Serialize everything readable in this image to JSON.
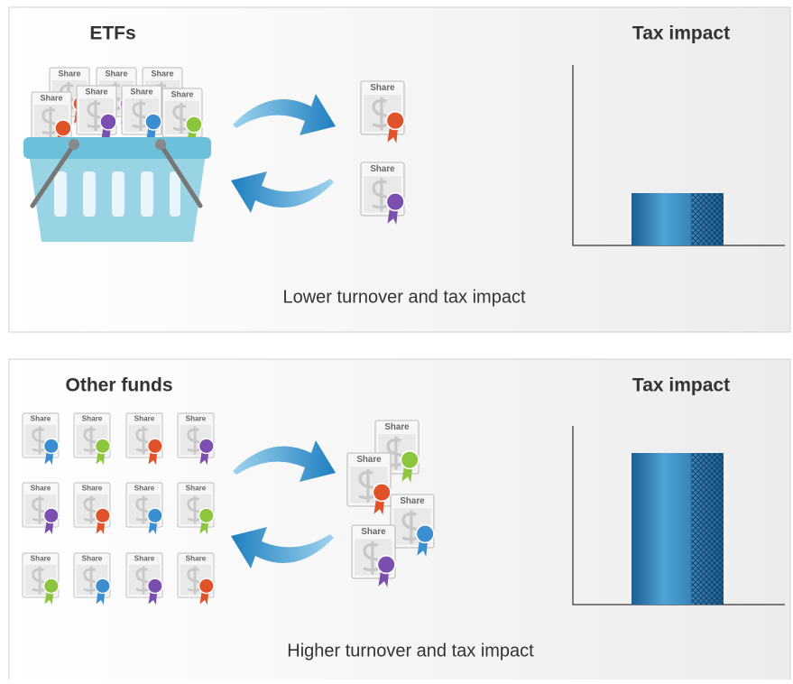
{
  "panels": [
    {
      "title": "ETFs",
      "chart_title": "Tax impact",
      "caption": "Lower turnover and tax impact",
      "basket_shares": [
        {
          "label": "Share",
          "ribbon": "#e0522a"
        },
        {
          "label": "Share",
          "ribbon": "#7b4fb0"
        },
        {
          "label": "Share",
          "ribbon": "#3b8fd0"
        },
        {
          "label": "Share",
          "ribbon": "#e0522a"
        },
        {
          "label": "Share",
          "ribbon": "#7b4fb0"
        },
        {
          "label": "Share",
          "ribbon": "#3b8fd0"
        },
        {
          "label": "Share",
          "ribbon": "#8cc63f"
        }
      ],
      "traded_shares": [
        {
          "label": "Share",
          "ribbon": "#e0522a"
        },
        {
          "label": "Share",
          "ribbon": "#7b4fb0"
        }
      ]
    },
    {
      "title": "Other funds",
      "chart_title": "Tax impact",
      "caption": "Higher turnover and tax impact",
      "held_shares": [
        {
          "label": "Share",
          "ribbon": "#3b8fd0"
        },
        {
          "label": "Share",
          "ribbon": "#8cc63f"
        },
        {
          "label": "Share",
          "ribbon": "#e0522a"
        },
        {
          "label": "Share",
          "ribbon": "#7b4fb0"
        },
        {
          "label": "Share",
          "ribbon": "#7b4fb0"
        },
        {
          "label": "Share",
          "ribbon": "#e0522a"
        },
        {
          "label": "Share",
          "ribbon": "#3b8fd0"
        },
        {
          "label": "Share",
          "ribbon": "#8cc63f"
        },
        {
          "label": "Share",
          "ribbon": "#8cc63f"
        },
        {
          "label": "Share",
          "ribbon": "#3b8fd0"
        },
        {
          "label": "Share",
          "ribbon": "#7b4fb0"
        },
        {
          "label": "Share",
          "ribbon": "#e0522a"
        }
      ],
      "traded_shares": [
        {
          "label": "Share",
          "ribbon": "#8cc63f"
        },
        {
          "label": "Share",
          "ribbon": "#e0522a"
        },
        {
          "label": "Share",
          "ribbon": "#3b8fd0"
        },
        {
          "label": "Share",
          "ribbon": "#7b4fb0"
        }
      ]
    }
  ]
}
